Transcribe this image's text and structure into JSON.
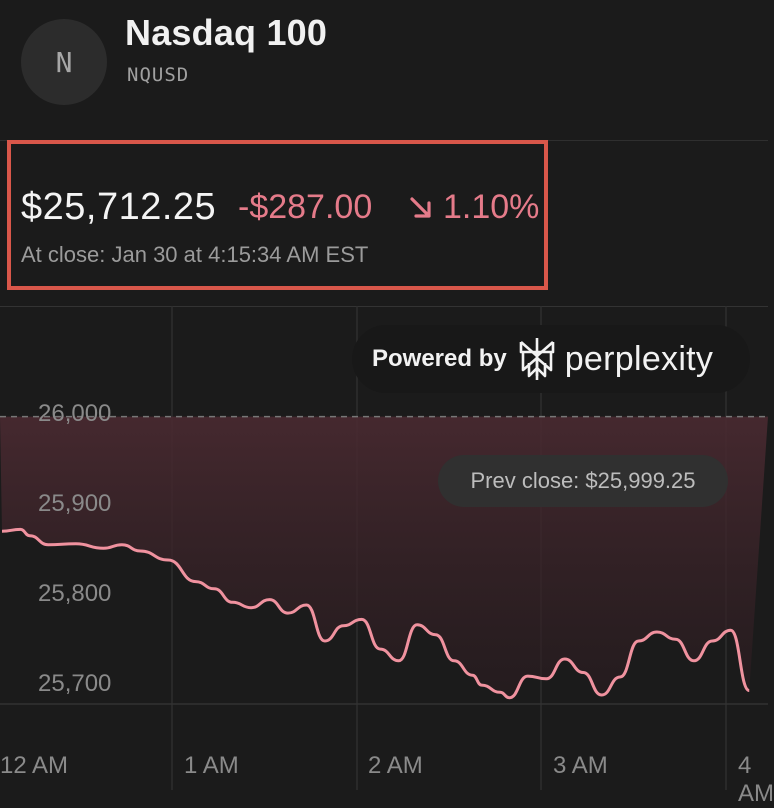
{
  "header": {
    "avatar_letter": "N",
    "name": "Nasdaq 100",
    "ticker": "NQUSD"
  },
  "quote": {
    "price": "$25,712.25",
    "change": "-$287.00",
    "change_pct": "1.10%",
    "direction": "down",
    "close_time": "At close: Jan 30 at 4:15:34 AM EST",
    "down_color": "#e57b8a",
    "highlight_color": "#d9574a"
  },
  "powered_by": {
    "label": "Powered by",
    "brand": "perplexity",
    "logo_icon": "perplexity-logo-icon"
  },
  "prev_close": "Prev close: $25,999.25",
  "chart_data": {
    "type": "area",
    "x_tick_labels": [
      "12 AM",
      "1 AM",
      "2 AM",
      "3 AM",
      "4 AM"
    ],
    "y_tick_labels": [
      "26,000",
      "25,900",
      "25,800",
      "25,700"
    ],
    "y_ticks": [
      26000,
      25900,
      25800,
      25700
    ],
    "ylim": [
      25680,
      26025
    ],
    "reference_line": 25999.25,
    "grid": true,
    "line_color": "#f0929f",
    "series": [
      {
        "x_hours": [
          0.0,
          0.1,
          0.15,
          0.25,
          0.4,
          0.55,
          0.65,
          0.75,
          0.9,
          1.05,
          1.15,
          1.25,
          1.35,
          1.45,
          1.55,
          1.65,
          1.75,
          1.85,
          1.95,
          2.05,
          2.15,
          2.25,
          2.35,
          2.45,
          2.55,
          2.6,
          2.7,
          2.75,
          2.85,
          2.95,
          3.05,
          3.15,
          3.25,
          3.35,
          3.45,
          3.55,
          3.65,
          3.75,
          3.85,
          3.95,
          4.05
        ],
        "values": [
          25872,
          25874,
          25867,
          25857,
          25858,
          25853,
          25857,
          25850,
          25840,
          25816,
          25808,
          25793,
          25787,
          25796,
          25781,
          25790,
          25750,
          25767,
          25774,
          25741,
          25728,
          25768,
          25757,
          25728,
          25712,
          25701,
          25693,
          25687,
          25711,
          25708,
          25730,
          25715,
          25690,
          25710,
          25750,
          25760,
          25752,
          25728,
          25750,
          25762,
          25695
        ]
      }
    ]
  }
}
